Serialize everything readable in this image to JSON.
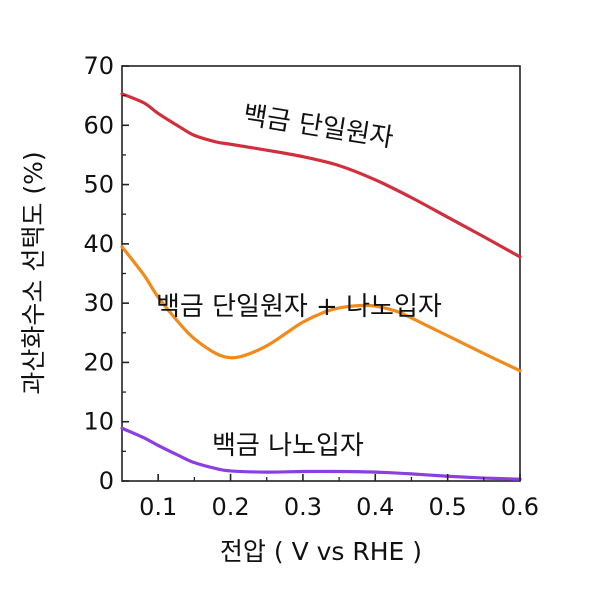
{
  "chart_data": {
    "type": "line",
    "xlabel": "전압 ( V vs RHE )",
    "ylabel": "과산화수소 선택도 (%)",
    "xlim": [
      0.05,
      0.6
    ],
    "ylim": [
      0,
      70
    ],
    "xticks": [
      "0.1",
      "0.2",
      "0.3",
      "0.4",
      "0.5",
      "0.6"
    ],
    "yticks": [
      "0",
      "10",
      "20",
      "30",
      "40",
      "50",
      "60",
      "70"
    ],
    "grid": false,
    "legend": "none",
    "series": [
      {
        "name": "백금 단일원자",
        "color": "#d0303e",
        "x": [
          0.05,
          0.08,
          0.1,
          0.13,
          0.15,
          0.18,
          0.2,
          0.25,
          0.3,
          0.35,
          0.4,
          0.45,
          0.5,
          0.55,
          0.6
        ],
        "y": [
          65.3,
          63.8,
          62.0,
          59.7,
          58.3,
          57.2,
          56.8,
          55.8,
          54.7,
          53.2,
          50.8,
          47.8,
          44.5,
          41.2,
          37.8
        ]
      },
      {
        "name": "백금 단일원자 + 나노입자",
        "color": "#f08a1a",
        "x": [
          0.05,
          0.08,
          0.1,
          0.13,
          0.15,
          0.18,
          0.2,
          0.22,
          0.25,
          0.28,
          0.3,
          0.33,
          0.35,
          0.38,
          0.4,
          0.43,
          0.45,
          0.5,
          0.55,
          0.6
        ],
        "y": [
          39.5,
          34.8,
          31.0,
          26.5,
          24.0,
          21.5,
          20.8,
          21.2,
          22.8,
          25.2,
          26.8,
          28.5,
          29.2,
          29.6,
          29.5,
          28.6,
          27.5,
          24.5,
          21.5,
          18.6
        ]
      },
      {
        "name": "백금 나노입자",
        "color": "#8b3fe0",
        "x": [
          0.05,
          0.08,
          0.1,
          0.13,
          0.15,
          0.18,
          0.2,
          0.25,
          0.3,
          0.35,
          0.4,
          0.45,
          0.5,
          0.55,
          0.6
        ],
        "y": [
          8.9,
          7.3,
          6.0,
          4.2,
          3.1,
          2.1,
          1.7,
          1.5,
          1.6,
          1.6,
          1.5,
          1.2,
          0.8,
          0.5,
          0.3
        ]
      }
    ]
  }
}
